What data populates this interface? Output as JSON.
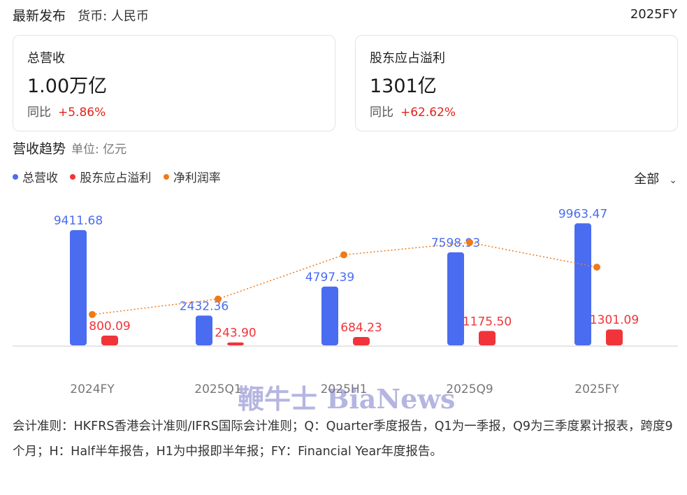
{
  "header": {
    "title": "最新发布",
    "currency": "货币: 人民币",
    "period": "2025FY"
  },
  "cards": [
    {
      "label": "总营收",
      "value": "1.00万亿",
      "yoy_label": "同比",
      "yoy_value": "+5.86%"
    },
    {
      "label": "股东应占溢利",
      "value": "1301亿",
      "yoy_label": "同比",
      "yoy_value": "+62.62%"
    }
  ],
  "section": {
    "title": "营收趋势",
    "unit": "单位: 亿元"
  },
  "legend": {
    "items": [
      {
        "label": "总营收",
        "color": "#4a6cf0"
      },
      {
        "label": "股东应占溢利",
        "color": "#f0343a"
      },
      {
        "label": "净利润率",
        "color": "#f07a1a"
      }
    ]
  },
  "scope": {
    "label": "全部",
    "icon": "chevron-down-icon"
  },
  "chart_data": {
    "type": "bar",
    "categories": [
      "2024FY",
      "2025Q1",
      "2025H1",
      "2025Q9",
      "2025FY"
    ],
    "series": [
      {
        "name": "总营收",
        "values": [
          9411.68,
          2432.36,
          4797.39,
          7598.93,
          9963.47
        ],
        "labels": [
          "9411.68",
          "2432.36",
          "4797.39",
          "7598.93",
          "9963.47"
        ],
        "color": "#4a6cf0"
      },
      {
        "name": "股东应占溢利",
        "values": [
          800.09,
          243.9,
          684.23,
          1175.5,
          1301.09
        ],
        "labels": [
          "800.09",
          "243.90",
          "684.23",
          "1175.50",
          "1301.09"
        ],
        "color": "#f0343a"
      },
      {
        "name": "净利润率",
        "type": "line",
        "values": [
          8.5,
          10.0,
          14.3,
          15.5,
          13.1
        ],
        "unit": "%",
        "color": "#f07a1a"
      }
    ],
    "ylim": [
      0,
      10500
    ],
    "line_ylim": [
      5.5,
      18
    ]
  },
  "watermark": "鞭牛士 BiaNews",
  "footnote": "会计准则：HKFRS香港会计准则/IFRS国际会计准则；Q：Quarter季度报告，Q1为一季报，Q9为三季度累计报表，跨度9个月；H：Half半年报告，H1为中报即半年报；FY：Financial Year年度报告。"
}
